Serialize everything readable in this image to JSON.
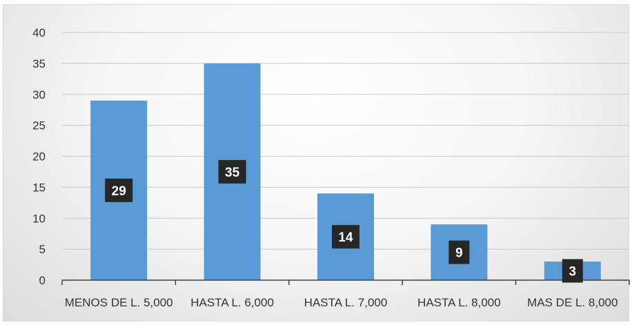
{
  "chart_data": {
    "type": "bar",
    "categories": [
      "MENOS DE L. 5,000",
      "HASTA L. 6,000",
      "HASTA L. 7,000",
      "HASTA L. 8,000",
      "MAS DE L. 8,000"
    ],
    "values": [
      29,
      35,
      14,
      9,
      3
    ],
    "title": "",
    "xlabel": "",
    "ylabel": "",
    "ylim": [
      0,
      40
    ],
    "yticks": [
      0,
      5,
      10,
      15,
      20,
      25,
      30,
      35,
      40
    ],
    "grid": true,
    "legend": "none",
    "data_labels": [
      "29",
      "35",
      "14",
      "9",
      "3"
    ],
    "colors": {
      "bar": "#5b9bd5",
      "label_bg": "#262626",
      "label_text": "#ffffff",
      "grid": "#c8c8c8"
    }
  }
}
